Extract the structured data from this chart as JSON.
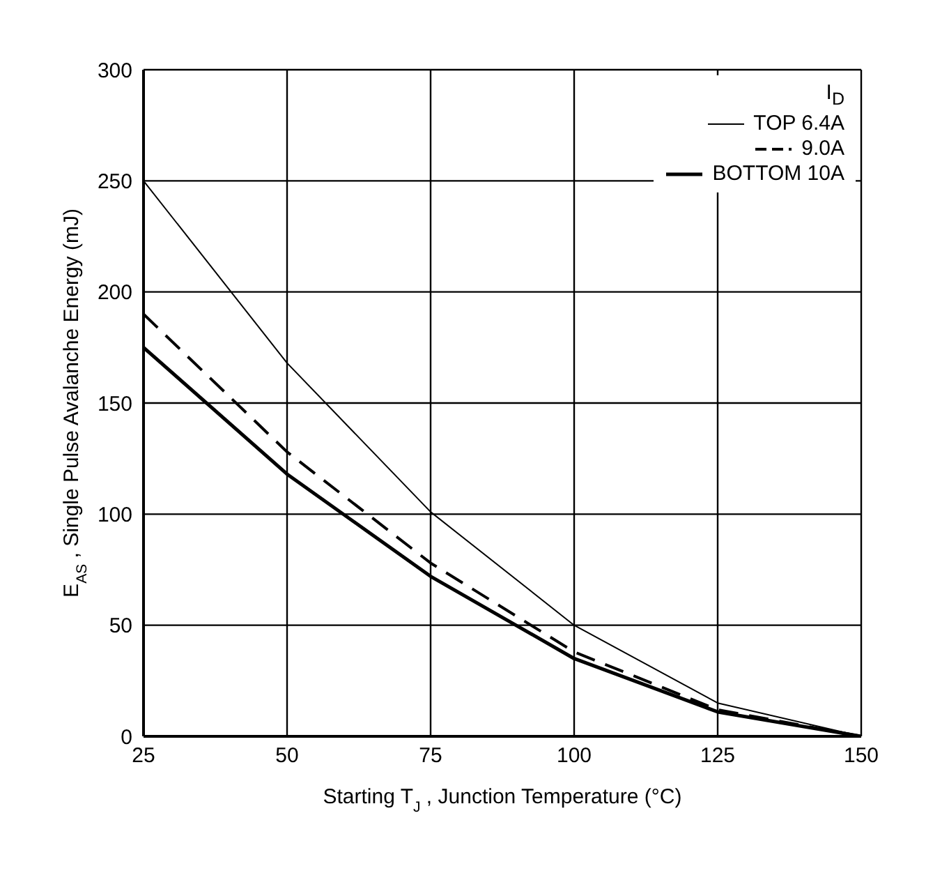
{
  "chart_data": {
    "type": "line",
    "xlabel": "Starting T$_{J}$ , Junction Temperature (°C)",
    "ylabel": "E$_{AS}$ , Single Pulse Avalanche Energy (mJ)",
    "legend_title": "I$_{D}$",
    "x": [
      25,
      50,
      75,
      100,
      125,
      150
    ],
    "series": [
      {
        "name": "TOP 6.4A",
        "color": "#000000",
        "line_style": "solid",
        "values": [
          250,
          168,
          101,
          50,
          15,
          0
        ]
      },
      {
        "name": "9.0A",
        "color": "#000000",
        "line_style": "dashed",
        "values": [
          190,
          128,
          78,
          38,
          12,
          0
        ]
      },
      {
        "name": "BOTTOM 10A",
        "color": "#000000",
        "line_style": "solid",
        "values": [
          175,
          118,
          72,
          35,
          11,
          0
        ]
      }
    ],
    "xlim": [
      25,
      150
    ],
    "xticks": [
      25,
      50,
      75,
      100,
      125,
      150
    ],
    "ylim": [
      0,
      300
    ],
    "yticks": [
      0,
      50,
      100,
      150,
      200,
      250,
      300
    ],
    "grid": true,
    "legend": "top right",
    "marker": "none"
  }
}
